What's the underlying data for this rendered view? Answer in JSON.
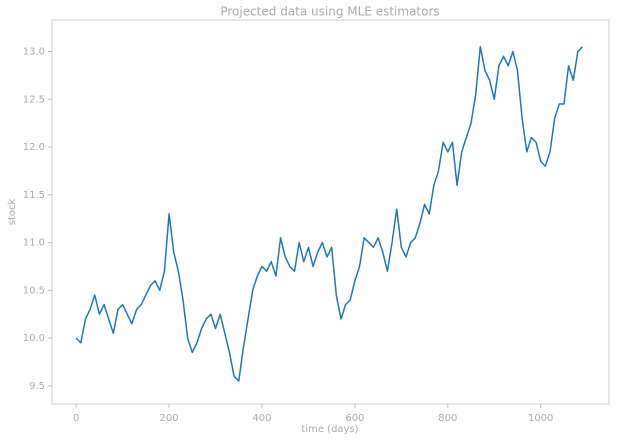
{
  "chart_data": {
    "type": "line",
    "title": "Projected data using MLE estimators",
    "x_label": "time (days)",
    "y_label": "stock",
    "x": [
      0,
      10,
      20,
      30,
      40,
      50,
      60,
      70,
      80,
      90,
      100,
      110,
      120,
      130,
      140,
      150,
      160,
      170,
      180,
      190,
      200,
      210,
      220,
      230,
      240,
      250,
      260,
      270,
      280,
      290,
      300,
      310,
      320,
      330,
      340,
      350,
      360,
      370,
      380,
      390,
      400,
      410,
      420,
      430,
      440,
      450,
      460,
      470,
      480,
      490,
      500,
      510,
      520,
      530,
      540,
      550,
      560,
      570,
      580,
      590,
      600,
      610,
      620,
      630,
      640,
      650,
      660,
      670,
      680,
      690,
      700,
      710,
      720,
      730,
      740,
      750,
      760,
      770,
      780,
      790,
      800,
      810,
      820,
      830,
      840,
      850,
      860,
      870,
      880,
      890,
      900,
      910,
      920,
      930,
      940,
      950,
      960,
      970,
      980,
      990,
      1000,
      1010,
      1020,
      1030,
      1040,
      1050,
      1060,
      1070,
      1080,
      1090
    ],
    "series": [
      {
        "color": "#1f77b4",
        "values": [
          10.0,
          9.95,
          10.2,
          10.3,
          10.45,
          10.25,
          10.35,
          10.2,
          10.05,
          10.3,
          10.35,
          10.25,
          10.15,
          10.3,
          10.35,
          10.45,
          10.55,
          10.6,
          10.5,
          10.7,
          11.3,
          10.9,
          10.7,
          10.4,
          10.0,
          9.85,
          9.95,
          10.1,
          10.2,
          10.25,
          10.1,
          10.25,
          10.05,
          9.85,
          9.6,
          9.55,
          9.9,
          10.2,
          10.5,
          10.65,
          10.75,
          10.7,
          10.8,
          10.65,
          11.05,
          10.85,
          10.75,
          10.7,
          11.0,
          10.8,
          10.95,
          10.75,
          10.9,
          11.0,
          10.85,
          10.95,
          10.45,
          10.2,
          10.35,
          10.4,
          10.6,
          10.75,
          11.05,
          11.0,
          10.95,
          11.05,
          10.9,
          10.7,
          11.0,
          11.35,
          10.95,
          10.85,
          11.0,
          11.05,
          11.2,
          11.4,
          11.3,
          11.6,
          11.75,
          12.05,
          11.95,
          12.05,
          11.6,
          11.95,
          12.1,
          12.25,
          12.55,
          13.05,
          12.8,
          12.7,
          12.5,
          12.85,
          12.95,
          12.85,
          13.0,
          12.8,
          12.3,
          11.95,
          12.1,
          12.05,
          11.85,
          11.8,
          11.95,
          12.3,
          12.45,
          12.45,
          12.85,
          12.7,
          13.0,
          13.05
        ]
      }
    ],
    "xlim": [
      -52,
      1147
    ],
    "xticks": [
      0,
      200,
      400,
      600,
      800,
      1000
    ],
    "ylim": [
      9.31,
      13.33
    ],
    "yticks": [
      9.5,
      {
        "value": 10,
        "label": "10.0"
      },
      10.5,
      {
        "value": 11,
        "label": "11.0"
      },
      11.5,
      {
        "value": 12,
        "label": "12.0"
      },
      12.5,
      {
        "value": 13,
        "label": "13.0"
      }
    ],
    "grid": false
  }
}
